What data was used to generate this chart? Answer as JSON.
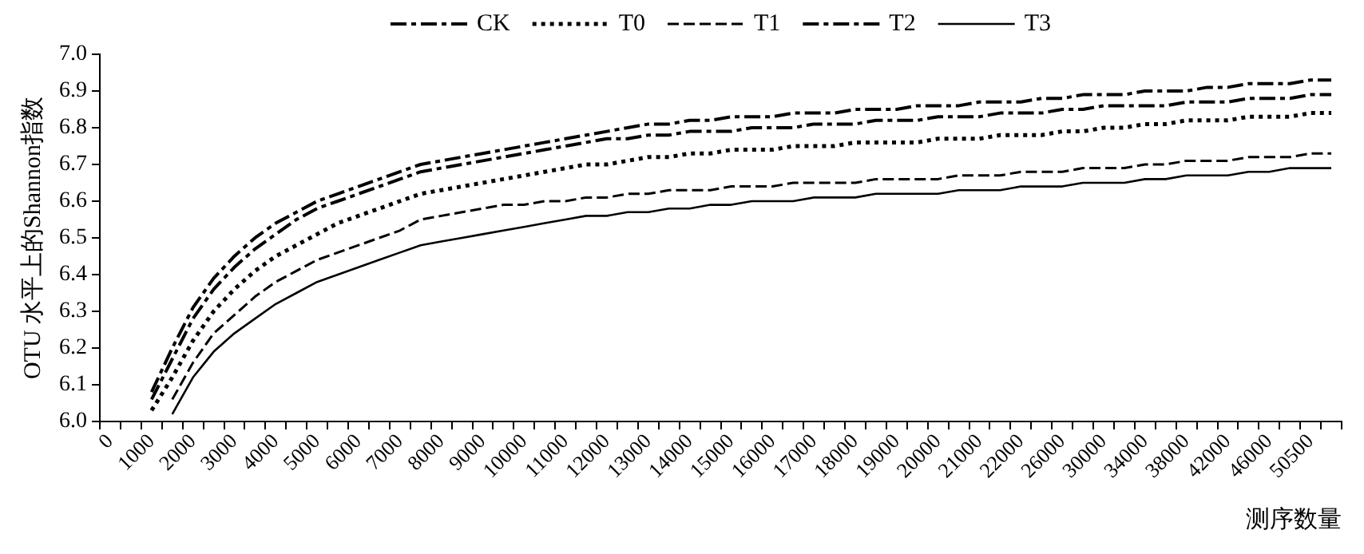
{
  "chart_data": {
    "type": "line",
    "xlabel": "测序数量",
    "ylabel": "OTU 水平上的Shannon指数",
    "legend": "top",
    "marker": "none",
    "grid": false,
    "categories": [
      "0",
      null,
      "1000",
      null,
      "2000",
      null,
      "3000",
      null,
      "4000",
      null,
      "5000",
      null,
      "6000",
      null,
      "7000",
      null,
      "8000",
      null,
      "9000",
      null,
      "10000",
      null,
      "11000",
      null,
      "12000",
      null,
      "13000",
      null,
      "14000",
      null,
      "15000",
      null,
      "16000",
      null,
      "17000",
      null,
      "18000",
      null,
      "19000",
      null,
      "20000",
      null,
      "21000",
      null,
      "22000",
      null,
      "26000",
      null,
      "30000",
      null,
      "34000",
      null,
      "38000",
      null,
      "42000",
      null,
      "46000",
      null,
      "50500",
      null
    ],
    "ylim": [
      6,
      7
    ],
    "yticks": [
      {
        "value": 6,
        "label": "6.0"
      },
      {
        "value": 6.1,
        "label": "6.1"
      },
      {
        "value": 6.2,
        "label": "6.2"
      },
      {
        "value": 6.3,
        "label": "6.3"
      },
      {
        "value": 6.4,
        "label": "6.4"
      },
      {
        "value": 6.5,
        "label": "6.5"
      },
      {
        "value": 6.6,
        "label": "6.6"
      },
      {
        "value": 6.7,
        "label": "6.7"
      },
      {
        "value": 6.8,
        "label": "6.8"
      },
      {
        "value": 6.9,
        "label": "6.9"
      },
      {
        "value": 7,
        "label": "7.0"
      }
    ],
    "series": [
      {
        "name": "CK",
        "color": "#000000",
        "line_style": "dashdot",
        "values": [
          null,
          null,
          6.06,
          6.17,
          6.28,
          6.36,
          6.42,
          6.47,
          6.51,
          6.55,
          6.58,
          6.6,
          6.62,
          6.64,
          6.66,
          6.68,
          6.69,
          6.7,
          6.71,
          6.72,
          6.73,
          6.74,
          6.75,
          6.76,
          6.77,
          6.77,
          6.78,
          6.78,
          6.79,
          6.79,
          6.79,
          6.8,
          6.8,
          6.8,
          6.81,
          6.81,
          6.81,
          6.82,
          6.82,
          6.82,
          6.83,
          6.83,
          6.83,
          6.84,
          6.84,
          6.84,
          6.85,
          6.85,
          6.86,
          6.86,
          6.86,
          6.86,
          6.87,
          6.87,
          6.87,
          6.88,
          6.88,
          6.88,
          6.89,
          6.89
        ]
      },
      {
        "name": "T0",
        "color": "#000000",
        "line_style": "dotted",
        "values": [
          null,
          null,
          6.03,
          6.12,
          6.22,
          6.3,
          6.36,
          6.41,
          6.45,
          6.48,
          6.51,
          6.54,
          6.56,
          6.58,
          6.6,
          6.62,
          6.63,
          6.64,
          6.65,
          6.66,
          6.67,
          6.68,
          6.69,
          6.7,
          6.7,
          6.71,
          6.72,
          6.72,
          6.73,
          6.73,
          6.74,
          6.74,
          6.74,
          6.75,
          6.75,
          6.75,
          6.76,
          6.76,
          6.76,
          6.76,
          6.77,
          6.77,
          6.77,
          6.78,
          6.78,
          6.78,
          6.79,
          6.79,
          6.8,
          6.8,
          6.81,
          6.81,
          6.82,
          6.82,
          6.82,
          6.83,
          6.83,
          6.83,
          6.84,
          6.84
        ]
      },
      {
        "name": "T1",
        "color": "#000000",
        "line_style": "dashed",
        "values": [
          null,
          null,
          null,
          6.06,
          6.16,
          6.24,
          6.29,
          6.34,
          6.38,
          6.41,
          6.44,
          6.46,
          6.48,
          6.5,
          6.52,
          6.55,
          6.56,
          6.57,
          6.58,
          6.59,
          6.59,
          6.6,
          6.6,
          6.61,
          6.61,
          6.62,
          6.62,
          6.63,
          6.63,
          6.63,
          6.64,
          6.64,
          6.64,
          6.65,
          6.65,
          6.65,
          6.65,
          6.66,
          6.66,
          6.66,
          6.66,
          6.67,
          6.67,
          6.67,
          6.68,
          6.68,
          6.68,
          6.69,
          6.69,
          6.69,
          6.7,
          6.7,
          6.71,
          6.71,
          6.71,
          6.72,
          6.72,
          6.72,
          6.73,
          6.73
        ]
      },
      {
        "name": "T2",
        "color": "#000000",
        "line_style": "dashdot",
        "values": [
          null,
          null,
          6.08,
          6.2,
          6.31,
          6.39,
          6.45,
          6.5,
          6.54,
          6.57,
          6.6,
          6.62,
          6.64,
          6.66,
          6.68,
          6.7,
          6.71,
          6.72,
          6.73,
          6.74,
          6.75,
          6.76,
          6.77,
          6.78,
          6.79,
          6.8,
          6.81,
          6.81,
          6.82,
          6.82,
          6.83,
          6.83,
          6.83,
          6.84,
          6.84,
          6.84,
          6.85,
          6.85,
          6.85,
          6.86,
          6.86,
          6.86,
          6.87,
          6.87,
          6.87,
          6.88,
          6.88,
          6.89,
          6.89,
          6.89,
          6.9,
          6.9,
          6.9,
          6.91,
          6.91,
          6.92,
          6.92,
          6.92,
          6.93,
          6.93
        ]
      },
      {
        "name": "T3",
        "color": "#000000",
        "line_style": "solid",
        "values": [
          null,
          null,
          null,
          6.02,
          6.12,
          6.19,
          6.24,
          6.28,
          6.32,
          6.35,
          6.38,
          6.4,
          6.42,
          6.44,
          6.46,
          6.48,
          6.49,
          6.5,
          6.51,
          6.52,
          6.53,
          6.54,
          6.55,
          6.56,
          6.56,
          6.57,
          6.57,
          6.58,
          6.58,
          6.59,
          6.59,
          6.6,
          6.6,
          6.6,
          6.61,
          6.61,
          6.61,
          6.62,
          6.62,
          6.62,
          6.62,
          6.63,
          6.63,
          6.63,
          6.64,
          6.64,
          6.64,
          6.65,
          6.65,
          6.65,
          6.66,
          6.66,
          6.67,
          6.67,
          6.67,
          6.68,
          6.68,
          6.69,
          6.69,
          6.69
        ]
      }
    ]
  }
}
